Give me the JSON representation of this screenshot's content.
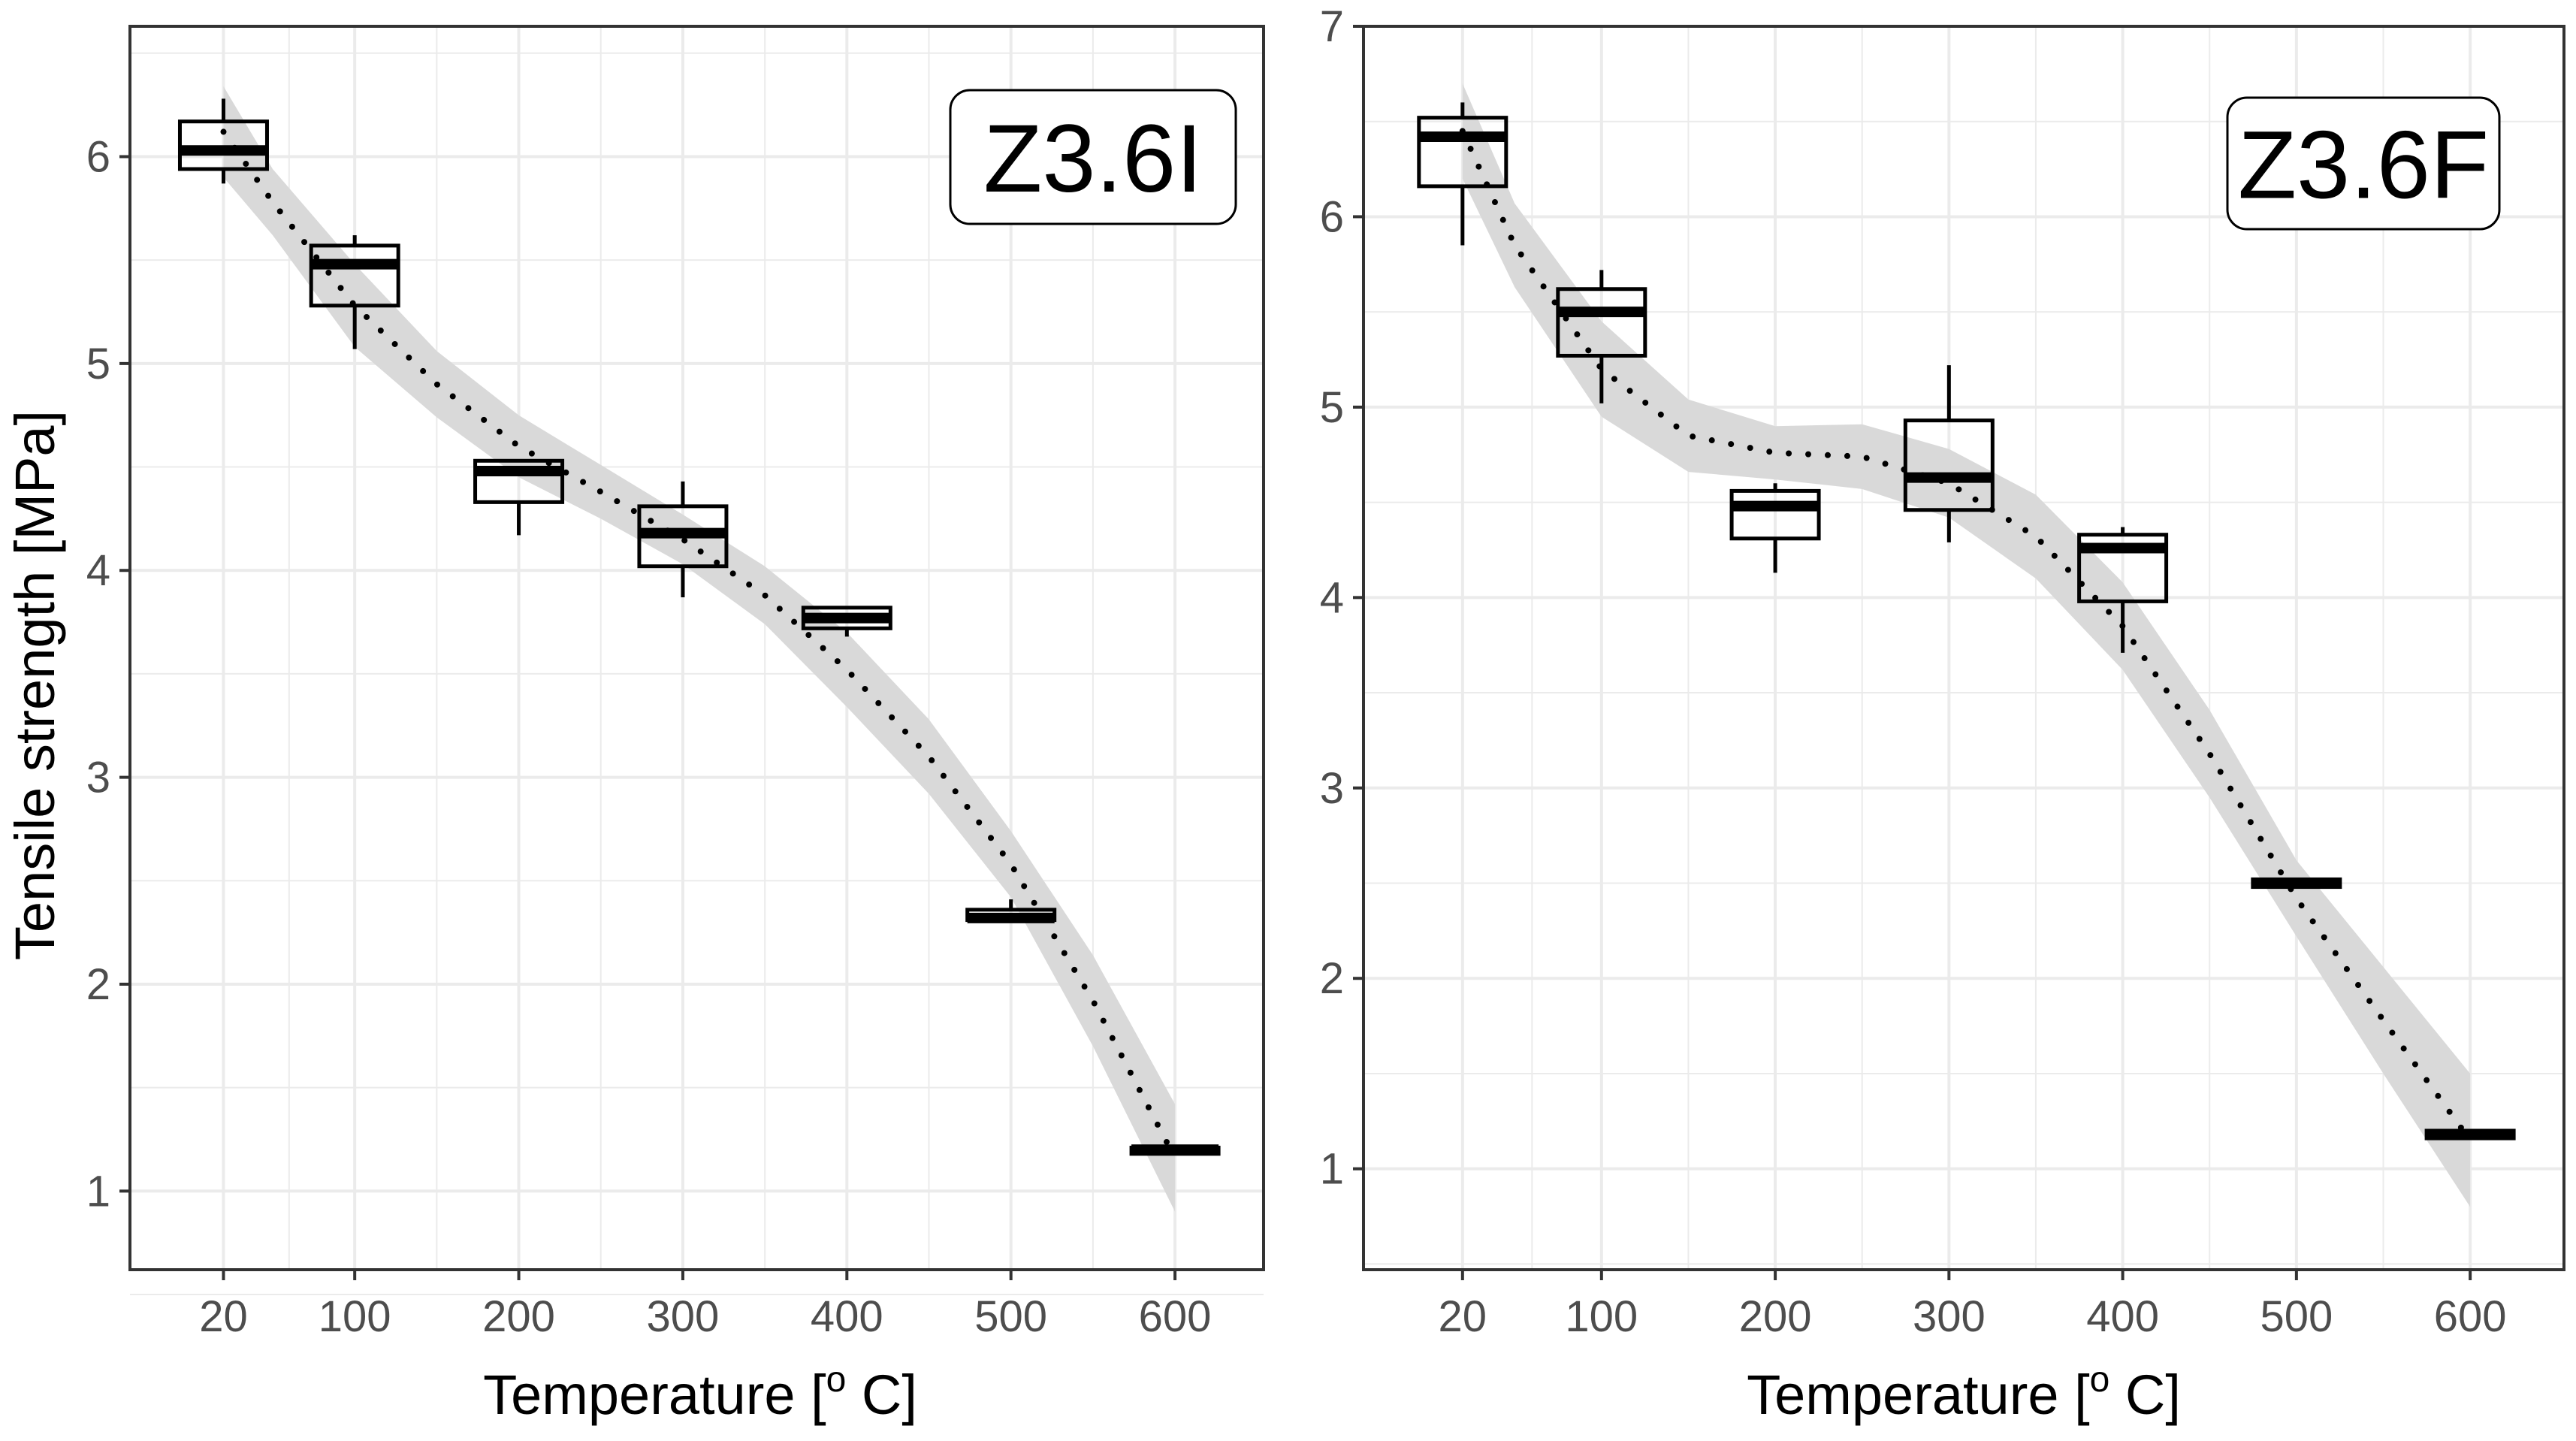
{
  "figure": {
    "ylabel": "Tensile strength [MPa]",
    "xlabel_main": "Temperature [",
    "xlabel_sup": "o",
    "xlabel_end": " C]"
  },
  "colors": {
    "band": "#d9d9d9",
    "grid": "#ebebeb",
    "frame": "#333333",
    "box": "#000000"
  },
  "chart_data": [
    {
      "type": "boxplot",
      "panel_label": "Z3.6I",
      "x_values": [
        20,
        100,
        200,
        300,
        400,
        500,
        600
      ],
      "x_tick_labels": [
        "20",
        "100",
        "200",
        "300",
        "400",
        "500",
        "600"
      ],
      "y_ticks": [
        1,
        2,
        3,
        4,
        5,
        6
      ],
      "y_tick_labels": [
        "1",
        "2",
        "3",
        "4",
        "5",
        "6"
      ],
      "xlim": [
        -37,
        654
      ],
      "ylim": [
        0.62,
        6.63
      ],
      "ylabel": "Tensile strength [MPa]",
      "xlabel": "Temperature [o C]",
      "boxes": [
        {
          "x": 20,
          "min": 5.87,
          "q1": 5.94,
          "median": 6.03,
          "q3": 6.17,
          "max": 6.28
        },
        {
          "x": 100,
          "min": 5.07,
          "q1": 5.28,
          "median": 5.48,
          "q3": 5.57,
          "max": 5.62
        },
        {
          "x": 200,
          "min": 4.17,
          "q1": 4.33,
          "median": 4.48,
          "q3": 4.53,
          "max": 4.53
        },
        {
          "x": 300,
          "min": 3.87,
          "q1": 4.02,
          "median": 4.18,
          "q3": 4.31,
          "max": 4.43
        },
        {
          "x": 400,
          "min": 3.68,
          "q1": 3.72,
          "median": 3.77,
          "q3": 3.82,
          "max": 3.82
        },
        {
          "x": 500,
          "min": 2.3,
          "q1": 2.31,
          "median": 2.32,
          "q3": 2.36,
          "max": 2.41
        },
        {
          "x": 600,
          "min": 1.18,
          "q1": 1.18,
          "median": 1.2,
          "q3": 1.21,
          "max": 1.21
        }
      ],
      "smooth": {
        "x": [
          20,
          50,
          100,
          150,
          200,
          250,
          300,
          350,
          400,
          450,
          500,
          550,
          600
        ],
        "y": [
          6.12,
          5.78,
          5.28,
          4.9,
          4.6,
          4.38,
          4.15,
          3.88,
          3.52,
          3.1,
          2.58,
          1.92,
          1.16
        ],
        "lower": [
          5.9,
          5.62,
          5.08,
          4.74,
          4.45,
          4.25,
          4.03,
          3.74,
          3.34,
          2.92,
          2.42,
          1.7,
          0.9
        ],
        "upper": [
          6.34,
          5.94,
          5.48,
          5.06,
          4.75,
          4.51,
          4.27,
          4.02,
          3.7,
          3.28,
          2.74,
          2.14,
          1.42
        ]
      }
    },
    {
      "type": "boxplot",
      "panel_label": "Z3.6F",
      "x_values": [
        20,
        100,
        200,
        300,
        400,
        500,
        600
      ],
      "x_tick_labels": [
        "20",
        "100",
        "200",
        "300",
        "400",
        "500",
        "600"
      ],
      "y_ticks": [
        1,
        2,
        3,
        4,
        5,
        6,
        7
      ],
      "y_tick_labels": [
        "1",
        "2",
        "3",
        "4",
        "5",
        "6",
        "7"
      ],
      "xlim": [
        -37,
        654
      ],
      "ylim": [
        0.47,
        7.0
      ],
      "ylabel": "",
      "xlabel": "Temperature [o C]",
      "boxes": [
        {
          "x": 20,
          "min": 5.85,
          "q1": 6.16,
          "median": 6.42,
          "q3": 6.52,
          "max": 6.6
        },
        {
          "x": 100,
          "min": 5.02,
          "q1": 5.27,
          "median": 5.5,
          "q3": 5.62,
          "max": 5.72
        },
        {
          "x": 200,
          "min": 4.13,
          "q1": 4.31,
          "median": 4.48,
          "q3": 4.56,
          "max": 4.6
        },
        {
          "x": 300,
          "min": 4.29,
          "q1": 4.46,
          "median": 4.63,
          "q3": 4.93,
          "max": 5.22
        },
        {
          "x": 400,
          "min": 3.71,
          "q1": 3.98,
          "median": 4.26,
          "q3": 4.33,
          "max": 4.37
        },
        {
          "x": 500,
          "min": 2.48,
          "q1": 2.48,
          "median": 2.5,
          "q3": 2.52,
          "max": 2.52
        },
        {
          "x": 600,
          "min": 1.16,
          "q1": 1.16,
          "median": 1.18,
          "q3": 1.2,
          "max": 1.2
        }
      ],
      "smooth": {
        "x": [
          20,
          50,
          100,
          150,
          200,
          250,
          300,
          350,
          400,
          450,
          500,
          550,
          600
        ],
        "y": [
          6.45,
          5.85,
          5.2,
          4.85,
          4.76,
          4.74,
          4.6,
          4.32,
          3.85,
          3.18,
          2.42,
          1.78,
          1.15
        ],
        "lower": [
          6.2,
          5.63,
          4.95,
          4.66,
          4.62,
          4.57,
          4.42,
          4.1,
          3.62,
          2.95,
          2.22,
          1.5,
          0.8
        ],
        "upper": [
          6.7,
          6.07,
          5.45,
          5.04,
          4.9,
          4.91,
          4.78,
          4.54,
          4.08,
          3.41,
          2.62,
          2.06,
          1.5
        ]
      }
    }
  ]
}
